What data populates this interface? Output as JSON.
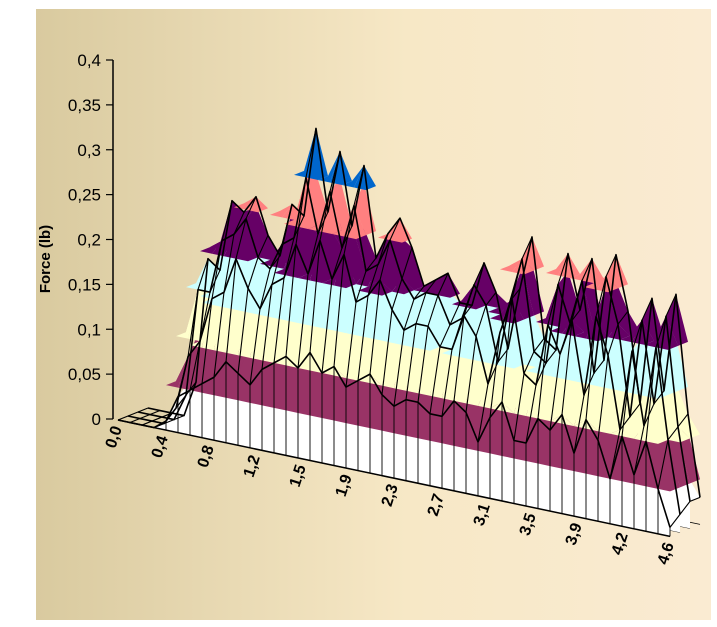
{
  "chart_data": {
    "type": "surface",
    "title": "",
    "xlabel": "",
    "ylabel": "Force (lb)",
    "ylim": [
      0,
      0.4
    ],
    "yticks": [
      "0",
      "0,05",
      "0,1",
      "0,15",
      "0,2",
      "0,25",
      "0,3",
      "0,35",
      "0,4"
    ],
    "xticks": [
      "0,0",
      "0,4",
      "0,8",
      "1,2",
      "1,5",
      "1,9",
      "2,3",
      "2,7",
      "3,1",
      "3,5",
      "3,9",
      "4,2",
      "4,6"
    ],
    "band_edges": [
      0,
      0.05,
      0.1,
      0.15,
      0.2,
      0.25,
      0.3,
      0.35,
      0.4
    ],
    "band_colors": [
      "#ffffff",
      "#993366",
      "#ffffcc",
      "#ccffff",
      "#660066",
      "#ff8080",
      "#0066cc",
      "#ccccff"
    ],
    "background_colors": [
      "#d9ca9f",
      "#f7e8c6",
      "#faebd2"
    ],
    "x": [
      0.0,
      0.1,
      0.2,
      0.3,
      0.4,
      0.5,
      0.6,
      0.7,
      0.8,
      0.9,
      1.0,
      1.1,
      1.2,
      1.3,
      1.4,
      1.5,
      1.6,
      1.7,
      1.8,
      1.9,
      2.0,
      2.1,
      2.2,
      2.3,
      2.4,
      2.5,
      2.6,
      2.7,
      2.8,
      2.9,
      3.0,
      3.1,
      3.2,
      3.3,
      3.4,
      3.5,
      3.6,
      3.7,
      3.8,
      3.9,
      4.0,
      4.1,
      4.2,
      4.3,
      4.4,
      4.5,
      4.6
    ],
    "series": [
      {
        "values": [
          0,
          0,
          0,
          0,
          0.04,
          0.18,
          0.17,
          0.25,
          0.24,
          0.26,
          0.22,
          0.2,
          0.26,
          0.25,
          0.35,
          0.26,
          0.33,
          0.25,
          0.32,
          0.22,
          0.25,
          0.27,
          0.24,
          0.2,
          0.21,
          0.22,
          0.19,
          0.19,
          0.24,
          0.21,
          0.15,
          0.22,
          0.28,
          0.17,
          0.16,
          0.27,
          0.21,
          0.27,
          0.16,
          0.28,
          0.22,
          0.12,
          0.24,
          0.14,
          0.25,
          0.12,
          0.03
        ]
      },
      {
        "values": [
          0,
          0,
          0,
          0,
          0.03,
          0.15,
          0.15,
          0.21,
          0.22,
          0.24,
          0.2,
          0.19,
          0.22,
          0.23,
          0.3,
          0.24,
          0.29,
          0.23,
          0.28,
          0.21,
          0.22,
          0.25,
          0.21,
          0.19,
          0.2,
          0.2,
          0.17,
          0.18,
          0.22,
          0.2,
          0.14,
          0.21,
          0.26,
          0.16,
          0.15,
          0.24,
          0.2,
          0.25,
          0.15,
          0.26,
          0.21,
          0.11,
          0.22,
          0.13,
          0.23,
          0.11,
          0.03
        ]
      },
      {
        "values": [
          0,
          0,
          0,
          0,
          0.02,
          0.08,
          0.1,
          0.15,
          0.16,
          0.2,
          0.17,
          0.15,
          0.18,
          0.19,
          0.23,
          0.2,
          0.24,
          0.2,
          0.23,
          0.18,
          0.19,
          0.21,
          0.18,
          0.16,
          0.17,
          0.17,
          0.15,
          0.15,
          0.19,
          0.17,
          0.12,
          0.18,
          0.22,
          0.14,
          0.13,
          0.2,
          0.17,
          0.21,
          0.13,
          0.22,
          0.18,
          0.1,
          0.19,
          0.11,
          0.2,
          0.1,
          0.02
        ]
      },
      {
        "values": [
          0,
          0,
          0,
          0,
          0.01,
          0.04,
          0.05,
          0.06,
          0.07,
          0.09,
          0.08,
          0.07,
          0.09,
          0.1,
          0.11,
          0.1,
          0.12,
          0.1,
          0.11,
          0.09,
          0.1,
          0.11,
          0.09,
          0.08,
          0.09,
          0.09,
          0.08,
          0.08,
          0.1,
          0.09,
          0.06,
          0.09,
          0.11,
          0.07,
          0.07,
          0.1,
          0.09,
          0.11,
          0.07,
          0.11,
          0.09,
          0.05,
          0.1,
          0.06,
          0.1,
          0.05,
          0.01
        ]
      }
    ]
  }
}
